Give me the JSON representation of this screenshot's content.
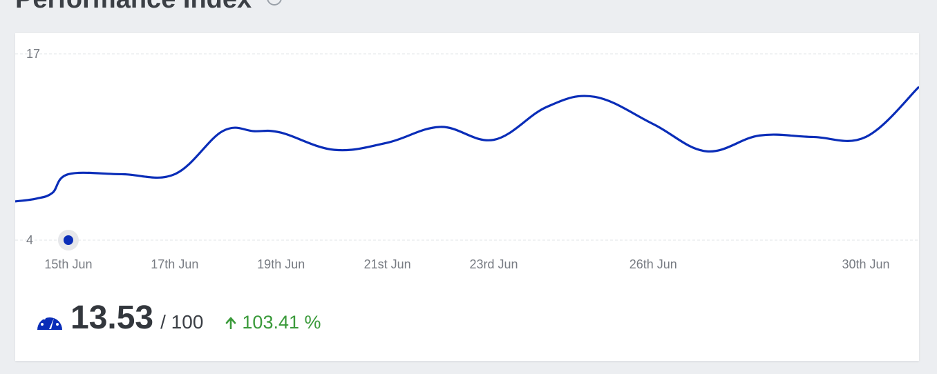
{
  "header": {
    "title": "Performance Index"
  },
  "summary": {
    "score": "13.53",
    "max": "/ 100",
    "change": "103.41 %",
    "icon": "gauge-icon",
    "change_icon": "arrow-up-icon"
  },
  "colors": {
    "line": "#0a2db8",
    "positive": "#3a9a3a",
    "grid": "#e2e4e7"
  },
  "chart_data": {
    "type": "line",
    "title": "Performance Index",
    "xlabel": "",
    "ylabel": "",
    "ylim": [
      4,
      17
    ],
    "y_ticks": [
      "17",
      "4"
    ],
    "grid": true,
    "x_labels": [
      {
        "day": 15,
        "label": "15th Jun"
      },
      {
        "day": 17,
        "label": "17th Jun"
      },
      {
        "day": 19,
        "label": "19th Jun"
      },
      {
        "day": 21,
        "label": "21st Jun"
      },
      {
        "day": 23,
        "label": "23rd Jun"
      },
      {
        "day": 26,
        "label": "26th Jun"
      },
      {
        "day": 30,
        "label": "30th Jun"
      }
    ],
    "series": [
      {
        "x": [
          14,
          14.4,
          14.7,
          15,
          16,
          17,
          17.9,
          18.5,
          19,
          20,
          21,
          22,
          23,
          24,
          24.9,
          26,
          27,
          28,
          29,
          30,
          31
        ],
        "values": [
          6.7,
          6.9,
          7.3,
          8.6,
          8.6,
          8.6,
          11.6,
          11.6,
          11.5,
          10.3,
          10.8,
          11.9,
          11.0,
          13.3,
          14.0,
          12.1,
          10.2,
          11.3,
          11.2,
          11.2,
          14.7
        ]
      }
    ],
    "highlight": {
      "x": 15,
      "y": 4
    }
  }
}
